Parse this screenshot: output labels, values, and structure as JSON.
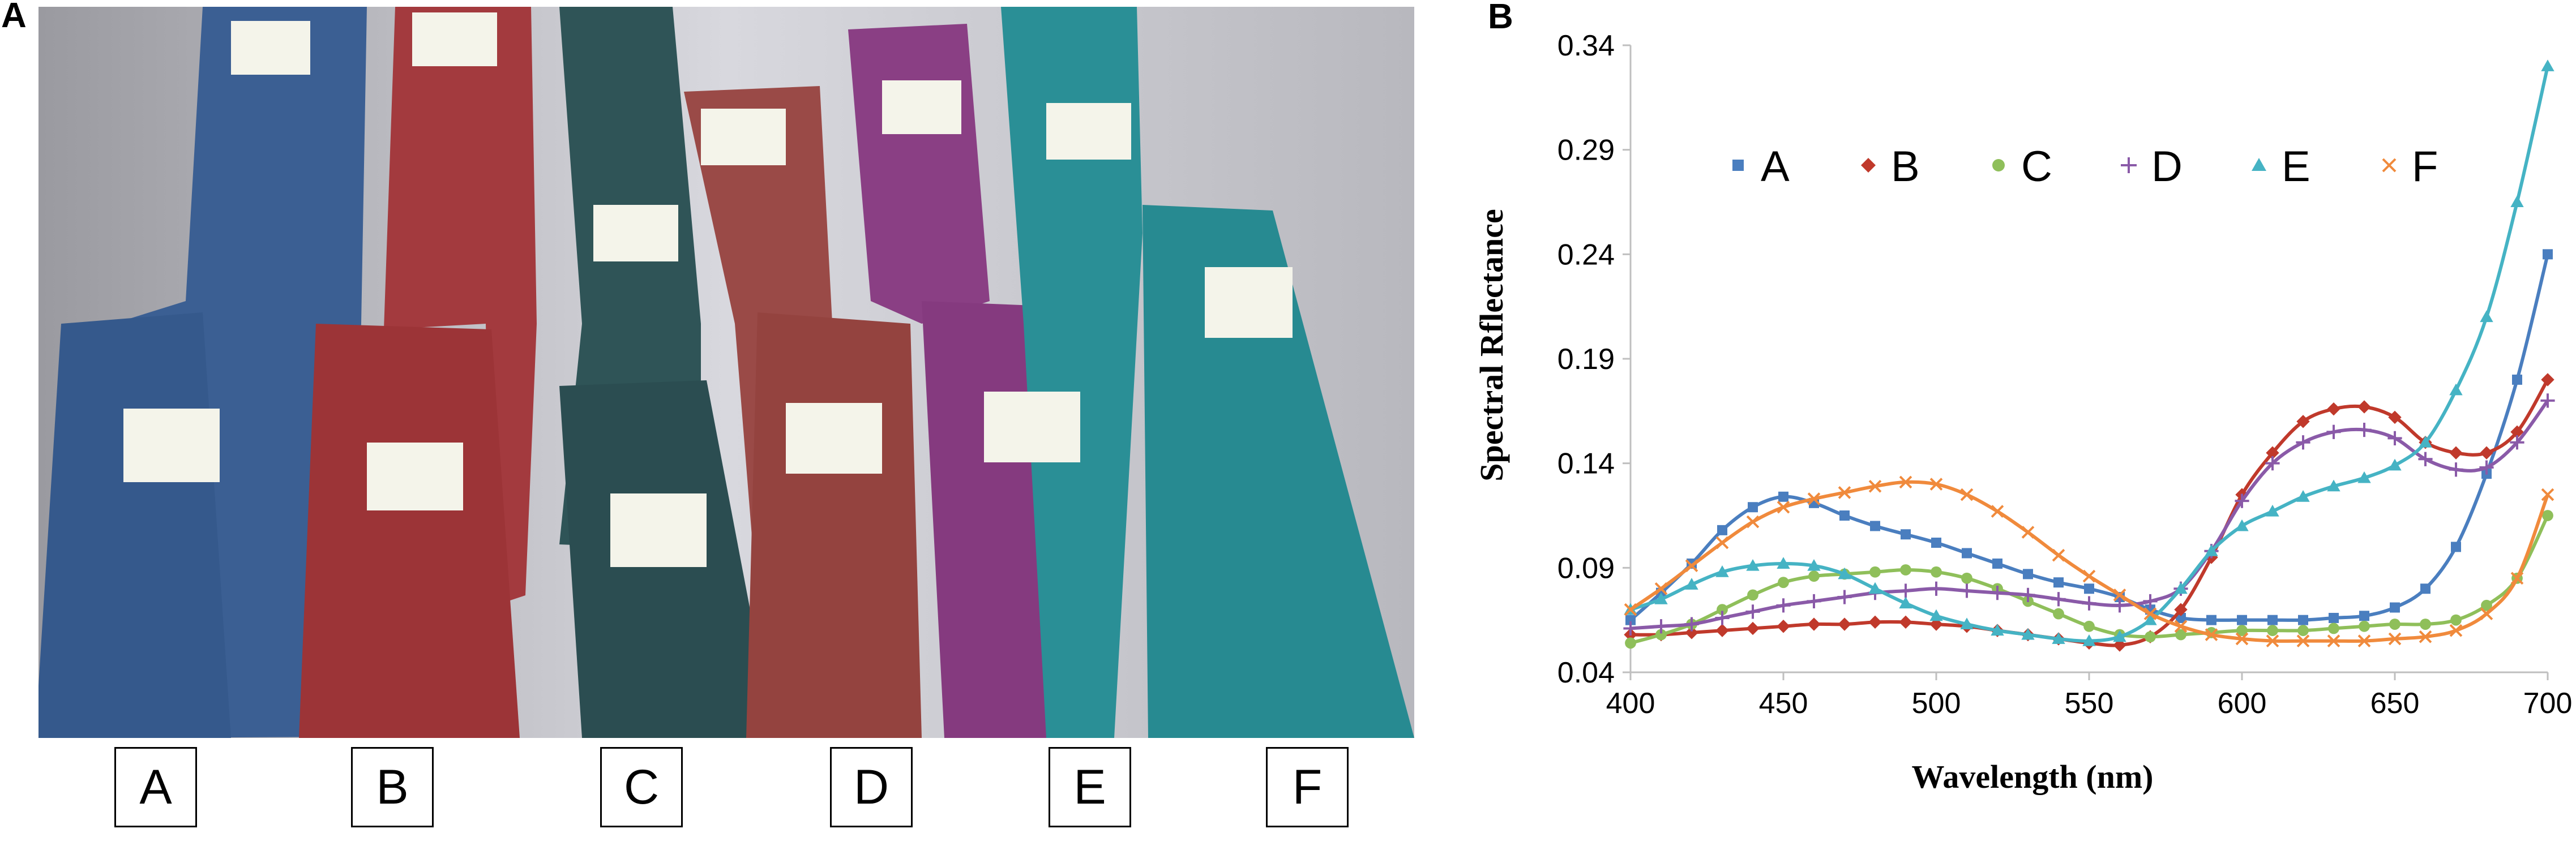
{
  "panels": {
    "a_label": "A",
    "b_label": "B"
  },
  "fabric_labels": [
    "A",
    "B",
    "C",
    "D",
    "E",
    "F"
  ],
  "colors": {
    "A": "#4a7ebf",
    "B": "#c0392b",
    "C": "#8fbf5a",
    "D": "#8a5aa8",
    "E": "#45b3c4",
    "F": "#f08a3c",
    "fabric_A": "#3b5f93",
    "fabric_B": "#a33a3e",
    "fabric_C": "#2f5457",
    "fabric_D": "#9a4a47",
    "fabric_E": "#8a3f84",
    "fabric_F": "#2a8f96"
  },
  "chart_data": {
    "type": "line",
    "xlabel": "Wavelength (nm)",
    "ylabel": "Spectral Rflectance",
    "xlim": [
      400,
      700
    ],
    "ylim": [
      0.04,
      0.34
    ],
    "xticks": [
      "400",
      "450",
      "500",
      "550",
      "600",
      "650",
      "700"
    ],
    "yticks": [
      "0.04",
      "0.09",
      "0.14",
      "0.19",
      "0.24",
      "0.29",
      "0.34"
    ],
    "grid": false,
    "legend": "top, horizontal",
    "x": [
      400,
      410,
      420,
      430,
      440,
      450,
      460,
      470,
      480,
      490,
      500,
      510,
      520,
      530,
      540,
      550,
      560,
      570,
      580,
      590,
      600,
      610,
      620,
      630,
      640,
      650,
      660,
      670,
      680,
      690,
      700
    ],
    "series": [
      {
        "name": "A",
        "marker": "square",
        "values": [
          0.065,
          0.078,
          0.092,
          0.108,
          0.119,
          0.124,
          0.121,
          0.115,
          0.11,
          0.106,
          0.102,
          0.097,
          0.092,
          0.087,
          0.083,
          0.08,
          0.076,
          0.07,
          0.066,
          0.065,
          0.065,
          0.065,
          0.065,
          0.066,
          0.067,
          0.071,
          0.08,
          0.1,
          0.135,
          0.18,
          0.24
        ]
      },
      {
        "name": "B",
        "marker": "diamond",
        "values": [
          0.058,
          0.058,
          0.059,
          0.06,
          0.061,
          0.062,
          0.063,
          0.063,
          0.064,
          0.064,
          0.063,
          0.062,
          0.06,
          0.058,
          0.056,
          0.054,
          0.053,
          0.057,
          0.07,
          0.095,
          0.125,
          0.145,
          0.16,
          0.166,
          0.167,
          0.162,
          0.15,
          0.145,
          0.145,
          0.155,
          0.18
        ]
      },
      {
        "name": "C",
        "marker": "circle",
        "values": [
          0.054,
          0.058,
          0.063,
          0.07,
          0.077,
          0.083,
          0.086,
          0.087,
          0.088,
          0.089,
          0.088,
          0.085,
          0.08,
          0.074,
          0.068,
          0.062,
          0.058,
          0.057,
          0.058,
          0.059,
          0.06,
          0.06,
          0.06,
          0.061,
          0.062,
          0.063,
          0.063,
          0.065,
          0.072,
          0.085,
          0.115
        ]
      },
      {
        "name": "D",
        "marker": "plus",
        "values": [
          0.061,
          0.062,
          0.063,
          0.066,
          0.069,
          0.072,
          0.074,
          0.076,
          0.078,
          0.079,
          0.08,
          0.079,
          0.078,
          0.077,
          0.075,
          0.073,
          0.072,
          0.074,
          0.08,
          0.098,
          0.122,
          0.14,
          0.15,
          0.155,
          0.156,
          0.152,
          0.142,
          0.137,
          0.138,
          0.15,
          0.17
        ]
      },
      {
        "name": "E",
        "marker": "triangle",
        "values": [
          0.07,
          0.075,
          0.082,
          0.088,
          0.091,
          0.092,
          0.091,
          0.087,
          0.08,
          0.073,
          0.067,
          0.063,
          0.06,
          0.058,
          0.056,
          0.055,
          0.057,
          0.065,
          0.08,
          0.098,
          0.11,
          0.117,
          0.124,
          0.129,
          0.133,
          0.139,
          0.15,
          0.175,
          0.21,
          0.265,
          0.33
        ]
      },
      {
        "name": "F",
        "marker": "x",
        "values": [
          0.07,
          0.08,
          0.091,
          0.102,
          0.112,
          0.119,
          0.123,
          0.126,
          0.129,
          0.131,
          0.13,
          0.125,
          0.117,
          0.107,
          0.096,
          0.086,
          0.077,
          0.068,
          0.062,
          0.058,
          0.056,
          0.055,
          0.055,
          0.055,
          0.055,
          0.056,
          0.057,
          0.06,
          0.068,
          0.085,
          0.125
        ]
      }
    ]
  }
}
